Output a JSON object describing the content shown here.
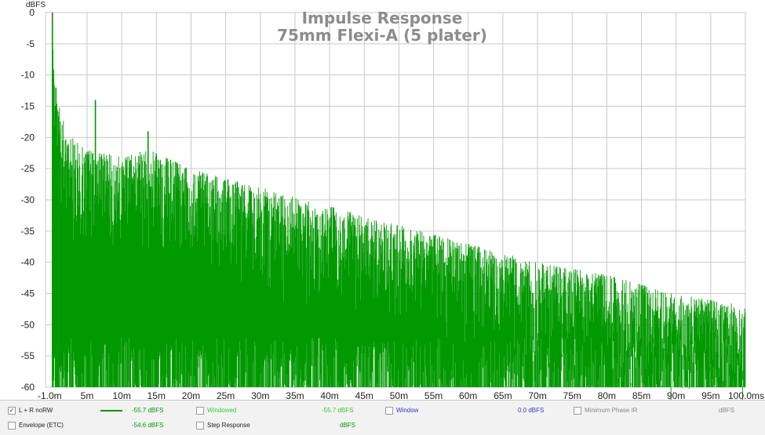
{
  "chart_data": {
    "type": "line",
    "title": "Impulse Response",
    "subtitle": "75mm Flexi-A (5 plater)",
    "ylabel": "dBFS",
    "xlabel": "",
    "xlim": [
      -1.0,
      100.0
    ],
    "ylim": [
      -60,
      0
    ],
    "y_ticks": [
      0,
      -5,
      -10,
      -15,
      -20,
      -25,
      -30,
      -35,
      -40,
      -45,
      -50,
      -55,
      -60
    ],
    "y_tick_labels": [
      "0",
      "-5",
      "-10",
      "-15",
      "-20",
      "-25",
      "-30",
      "-35",
      "-40",
      "-45",
      "-50",
      "-55",
      "-60"
    ],
    "x_ticks": [
      -1,
      5,
      10,
      15,
      20,
      25,
      30,
      35,
      40,
      45,
      50,
      55,
      60,
      65,
      70,
      75,
      80,
      85,
      90,
      95,
      100
    ],
    "x_tick_labels": [
      "-1.0m",
      "5m",
      "10m",
      "15m",
      "20m",
      "25m",
      "30m",
      "35m",
      "40m",
      "45m",
      "50m",
      "55m",
      "60m",
      "65m",
      "70m",
      "75m",
      "80m",
      "85m",
      "90m",
      "95m",
      "100.0ms"
    ],
    "grid": true,
    "series": [
      {
        "name": "L + R noRW",
        "color": "#009900",
        "envelope_x": [
          -1.0,
          0.0,
          0.3,
          1.0,
          2.0,
          5.0,
          10.0,
          14.0,
          20.0,
          30.0,
          40.0,
          50.0,
          60.0,
          70.0,
          80.0,
          90.0,
          100.0
        ],
        "envelope_y": [
          -60,
          0,
          -12,
          -15,
          -19,
          -22,
          -23,
          -22,
          -25,
          -28,
          -31,
          -34,
          -37,
          -40,
          -42,
          -45,
          -47
        ],
        "peaks": [
          {
            "x": 0.0,
            "y": 0
          },
          {
            "x": 0.5,
            "y": -12
          },
          {
            "x": 6.2,
            "y": -14
          },
          {
            "x": 13.8,
            "y": -19
          }
        ]
      }
    ]
  },
  "legend": {
    "row1": [
      {
        "checked": true,
        "check_char": "✓",
        "label": "L + R noRW",
        "value": "-55.7 dBFS",
        "label_color": "#222222",
        "value_color": "#009900",
        "swatch": "#009900"
      },
      {
        "checked": false,
        "check_char": "",
        "label": "Windowed",
        "value": "-55.7 dBFS",
        "label_color": "#33cc33",
        "value_color": "#33cc33"
      },
      {
        "checked": false,
        "check_char": "",
        "label": "Window",
        "value": "0.0 dBFS",
        "label_color": "#3333cc",
        "value_color": "#3333cc"
      },
      {
        "checked": false,
        "check_char": "",
        "label": "Minimum Phase IR",
        "value": "dBFS",
        "label_color": "#888888",
        "value_color": "#888888"
      }
    ],
    "row2": [
      {
        "checked": false,
        "check_char": "",
        "label": "Envelope (ETC)",
        "value": "-54.6 dBFS",
        "label_color": "#222222",
        "value_color": "#009900"
      },
      {
        "checked": false,
        "check_char": "",
        "label": "Step Response",
        "value": "dBFS",
        "label_color": "#222222",
        "value_color": "#009900"
      }
    ]
  }
}
